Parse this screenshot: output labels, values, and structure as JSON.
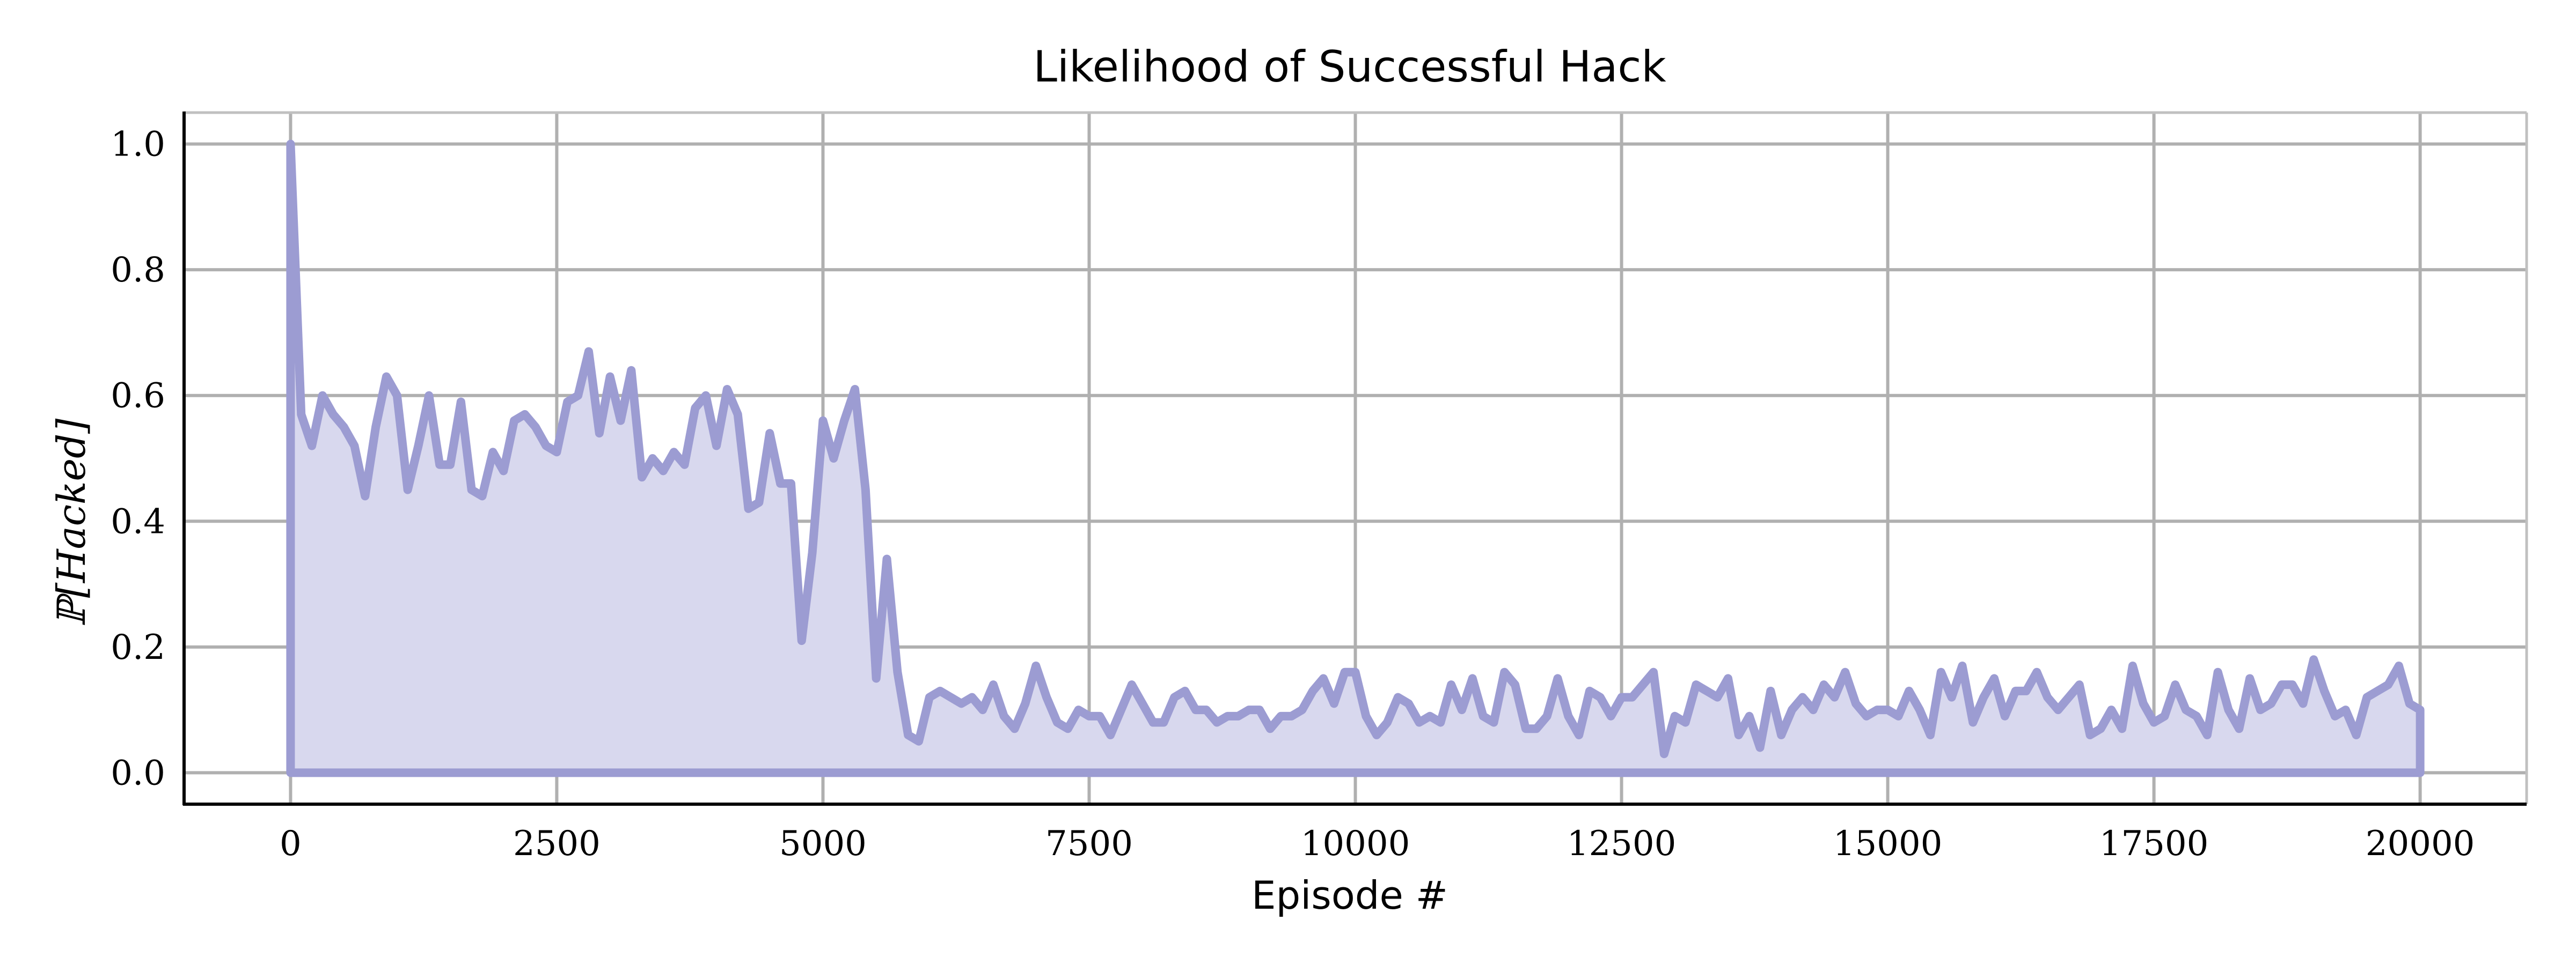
{
  "chart_data": {
    "type": "area",
    "title": "Likelihood of Successful Hack",
    "xlabel": "Episode #",
    "ylabel": "ℙ[Hacked]",
    "xlim": [
      -1000,
      21000
    ],
    "ylim": [
      -0.05,
      1.05
    ],
    "xticks": [
      0,
      2500,
      5000,
      7500,
      10000,
      12500,
      15000,
      17500,
      20000
    ],
    "xtick_labels": [
      "0",
      "2500",
      "5000",
      "7500",
      "10000",
      "12500",
      "15000",
      "17500",
      "20000"
    ],
    "yticks": [
      0.0,
      0.2,
      0.4,
      0.6,
      0.8,
      1.0
    ],
    "ytick_labels": [
      "0.0",
      "0.2",
      "0.4",
      "0.6",
      "0.8",
      "1.0"
    ],
    "grid": true,
    "legend": "none",
    "colors": {
      "line": "#9c9cd2",
      "fill": "#d8d8ee",
      "grid": "#b0b0b0",
      "axis": "#000000"
    },
    "series": [
      {
        "x": [
          0,
          100,
          200,
          300,
          400,
          500,
          600,
          700,
          800,
          900,
          1000,
          1100,
          1200,
          1300,
          1400,
          1500,
          1600,
          1700,
          1800,
          1900,
          2000,
          2100,
          2200,
          2300,
          2400,
          2500,
          2600,
          2700,
          2800,
          2900,
          3000,
          3100,
          3200,
          3300,
          3400,
          3500,
          3600,
          3700,
          3800,
          3900,
          4000,
          4100,
          4200,
          4300,
          4400,
          4500,
          4600,
          4700,
          4800,
          4900,
          5000,
          5100,
          5200,
          5300,
          5400,
          5500,
          5600,
          5700,
          5800,
          5900,
          6000,
          6100,
          6200,
          6300,
          6400,
          6500,
          6600,
          6700,
          6800,
          6900,
          7000,
          7100,
          7200,
          7300,
          7400,
          7500,
          7600,
          7700,
          7800,
          7900,
          8000,
          8100,
          8200,
          8300,
          8400,
          8500,
          8600,
          8700,
          8800,
          8900,
          9000,
          9100,
          9200,
          9300,
          9400,
          9500,
          9600,
          9700,
          9800,
          9900,
          10000,
          10100,
          10200,
          10300,
          10400,
          10500,
          10600,
          10700,
          10800,
          10900,
          11000,
          11100,
          11200,
          11300,
          11400,
          11500,
          11600,
          11700,
          11800,
          11900,
          12000,
          12100,
          12200,
          12300,
          12400,
          12500,
          12600,
          12700,
          12800,
          12900,
          13000,
          13100,
          13200,
          13300,
          13400,
          13500,
          13600,
          13700,
          13800,
          13900,
          14000,
          14100,
          14200,
          14300,
          14400,
          14500,
          14600,
          14700,
          14800,
          14900,
          15000,
          15100,
          15200,
          15300,
          15400,
          15500,
          15600,
          15700,
          15800,
          15900,
          16000,
          16100,
          16200,
          16300,
          16400,
          16500,
          16600,
          16700,
          16800,
          16900,
          17000,
          17100,
          17200,
          17300,
          17400,
          17500,
          17600,
          17700,
          17800,
          17900,
          18000,
          18100,
          18200,
          18300,
          18400,
          18500,
          18600,
          18700,
          18800,
          18900,
          19000,
          19100,
          19200,
          19300,
          19400,
          19500,
          19600,
          19700,
          19800,
          19900,
          20000
        ],
        "y": [
          1.0,
          0.57,
          0.52,
          0.6,
          0.57,
          0.55,
          0.52,
          0.44,
          0.55,
          0.63,
          0.6,
          0.45,
          0.52,
          0.6,
          0.49,
          0.49,
          0.59,
          0.45,
          0.44,
          0.51,
          0.48,
          0.56,
          0.57,
          0.55,
          0.52,
          0.51,
          0.59,
          0.6,
          0.67,
          0.54,
          0.63,
          0.56,
          0.64,
          0.47,
          0.5,
          0.48,
          0.51,
          0.49,
          0.58,
          0.6,
          0.52,
          0.61,
          0.57,
          0.42,
          0.43,
          0.54,
          0.46,
          0.46,
          0.21,
          0.35,
          0.56,
          0.5,
          0.56,
          0.61,
          0.45,
          0.15,
          0.34,
          0.16,
          0.06,
          0.05,
          0.12,
          0.13,
          0.12,
          0.11,
          0.12,
          0.1,
          0.14,
          0.09,
          0.07,
          0.11,
          0.17,
          0.12,
          0.08,
          0.07,
          0.1,
          0.09,
          0.09,
          0.06,
          0.1,
          0.14,
          0.11,
          0.08,
          0.08,
          0.12,
          0.13,
          0.1,
          0.1,
          0.08,
          0.09,
          0.09,
          0.1,
          0.1,
          0.07,
          0.09,
          0.09,
          0.1,
          0.13,
          0.15,
          0.11,
          0.16,
          0.16,
          0.09,
          0.06,
          0.08,
          0.12,
          0.11,
          0.08,
          0.09,
          0.08,
          0.14,
          0.1,
          0.15,
          0.09,
          0.08,
          0.16,
          0.14,
          0.07,
          0.07,
          0.09,
          0.15,
          0.09,
          0.06,
          0.13,
          0.12,
          0.09,
          0.12,
          0.12,
          0.14,
          0.16,
          0.03,
          0.09,
          0.08,
          0.14,
          0.13,
          0.12,
          0.15,
          0.06,
          0.09,
          0.04,
          0.13,
          0.06,
          0.1,
          0.12,
          0.1,
          0.14,
          0.12,
          0.16,
          0.11,
          0.09,
          0.1,
          0.1,
          0.09,
          0.13,
          0.1,
          0.06,
          0.16,
          0.12,
          0.17,
          0.08,
          0.12,
          0.15,
          0.09,
          0.13,
          0.13,
          0.16,
          0.12,
          0.1,
          0.12,
          0.14,
          0.06,
          0.07,
          0.1,
          0.07,
          0.17,
          0.11,
          0.08,
          0.09,
          0.14,
          0.1,
          0.09,
          0.06,
          0.16,
          0.1,
          0.07,
          0.15,
          0.1,
          0.11,
          0.14,
          0.14,
          0.11,
          0.18,
          0.13,
          0.09,
          0.1,
          0.06,
          0.12,
          0.13,
          0.14,
          0.17,
          0.11,
          0.1
        ]
      }
    ]
  }
}
